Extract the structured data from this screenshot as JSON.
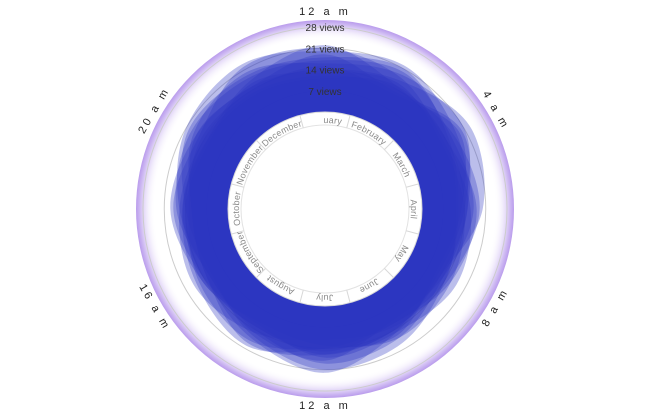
{
  "chart_data": {
    "type": "radial-area",
    "title": "",
    "radial_axis": {
      "ticks": [
        7,
        14,
        21,
        28
      ],
      "tick_labels": [
        "7 views",
        "14 views",
        "21 views",
        "28 views"
      ],
      "range": [
        0,
        28
      ]
    },
    "hour_labels": [
      "12 a m",
      "4 a m",
      "8 a m",
      "12 a m",
      "16 a m",
      "20 a m"
    ],
    "months": [
      "January",
      "February",
      "March",
      "April",
      "May",
      "June",
      "July",
      "August",
      "September",
      "October",
      "November",
      "December"
    ],
    "hours": [
      0,
      2,
      4,
      6,
      8,
      10,
      12,
      14,
      16,
      18,
      20,
      22
    ],
    "series": [
      {
        "month": "January",
        "values": [
          20,
          22,
          18,
          15,
          13,
          17,
          19,
          14,
          12,
          16,
          21,
          23
        ]
      },
      {
        "month": "February",
        "values": [
          16,
          19,
          21,
          14,
          11,
          15,
          22,
          17,
          13,
          12,
          18,
          20
        ]
      },
      {
        "month": "March",
        "values": [
          22,
          15,
          14,
          18,
          16,
          12,
          14,
          20,
          17,
          15,
          13,
          17
        ]
      },
      {
        "month": "April",
        "values": [
          14,
          17,
          23,
          20,
          12,
          14,
          16,
          13,
          15,
          19,
          17,
          15
        ]
      },
      {
        "month": "May",
        "values": [
          18,
          21,
          15,
          12,
          14,
          19,
          21,
          16,
          11,
          14,
          20,
          19
        ]
      },
      {
        "month": "June",
        "values": [
          12,
          14,
          17,
          19,
          15,
          13,
          11,
          15,
          18,
          16,
          14,
          13
        ]
      },
      {
        "month": "July",
        "values": [
          21,
          18,
          13,
          16,
          18,
          15,
          17,
          12,
          14,
          18,
          16,
          22
        ]
      },
      {
        "month": "August",
        "values": [
          15,
          12,
          19,
          13,
          10,
          16,
          14,
          18,
          16,
          13,
          15,
          14
        ]
      },
      {
        "month": "September",
        "values": [
          17,
          20,
          16,
          17,
          13,
          11,
          18,
          15,
          12,
          17,
          19,
          18
        ]
      },
      {
        "month": "October",
        "values": [
          13,
          16,
          12,
          14,
          16,
          17,
          13,
          11,
          15,
          14,
          12,
          16
        ]
      },
      {
        "month": "November",
        "values": [
          19,
          13,
          20,
          15,
          12,
          14,
          16,
          19,
          13,
          12,
          17,
          15
        ]
      },
      {
        "month": "December",
        "values": [
          11,
          15,
          14,
          11,
          14,
          12,
          15,
          13,
          14,
          15,
          13,
          12
        ]
      }
    ],
    "colors": {
      "area": "#2a35c0",
      "outer_band": "#a57ee6",
      "gridline": "#cccccc",
      "month_ring": "#d8d8d8"
    },
    "grid": true,
    "legend": "none"
  }
}
